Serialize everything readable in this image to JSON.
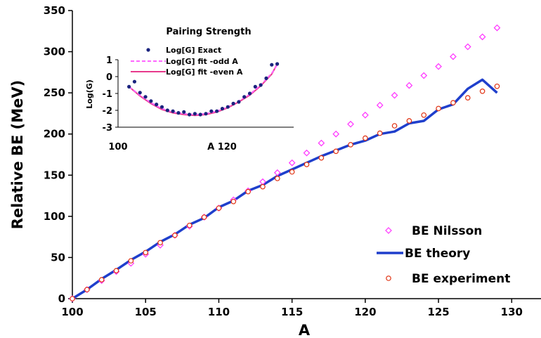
{
  "chart_data": [
    {
      "type": "line",
      "xlabel": "A",
      "ylabel": "Relative BE (MeV)",
      "xlim": [
        100,
        132
      ],
      "ylim": [
        0,
        350
      ],
      "x_ticks": [
        100,
        105,
        110,
        115,
        120,
        125,
        130
      ],
      "y_ticks": [
        0,
        50,
        100,
        150,
        200,
        250,
        300,
        350
      ],
      "legend_position": "bottom-right",
      "x": [
        100,
        101,
        102,
        103,
        104,
        105,
        106,
        107,
        108,
        109,
        110,
        111,
        112,
        113,
        114,
        115,
        116,
        117,
        118,
        119,
        120,
        121,
        122,
        123,
        124,
        125,
        126,
        127,
        128,
        129
      ],
      "series": [
        {
          "name": "BE Nilsson",
          "style": "diamond-markers",
          "color": "#ff33ff",
          "values": [
            0,
            11,
            22,
            33,
            43,
            54,
            65,
            77,
            88,
            99,
            110,
            120,
            131,
            142,
            153,
            165,
            177,
            189,
            200,
            212,
            223,
            235,
            247,
            259,
            271,
            282,
            294,
            306,
            318,
            329
          ]
        },
        {
          "name": "BE theory",
          "style": "line",
          "color": "#1f3fcc",
          "values": [
            0,
            11,
            24,
            35,
            47,
            57,
            69,
            78,
            90,
            98,
            111,
            119,
            131,
            138,
            149,
            157,
            165,
            173,
            180,
            187,
            192,
            200,
            203,
            213,
            216,
            230,
            236,
            255,
            266,
            250
          ]
        },
        {
          "name": "BE experiment",
          "style": "circle-markers",
          "color": "#e03010",
          "values": [
            0,
            11,
            23,
            34,
            46,
            56,
            68,
            77,
            89,
            99,
            110,
            118,
            130,
            136,
            146,
            154,
            163,
            171,
            179,
            187,
            195,
            201,
            210,
            216,
            223,
            231,
            238,
            244,
            252,
            258
          ]
        }
      ]
    },
    {
      "type": "line",
      "title": "Pairing Strength",
      "xlabel": "A",
      "ylabel": "Log(G)",
      "xlim": [
        100,
        132
      ],
      "ylim": [
        -3,
        1
      ],
      "x_ticks": [
        100,
        120
      ],
      "y_ticks": [
        -3,
        -2,
        -1,
        0,
        1
      ],
      "legend_position": "top",
      "series": [
        {
          "name": "Log[G] Exact",
          "style": "dot-markers",
          "color": "#1a237e",
          "x": [
            102,
            103,
            104,
            105,
            106,
            107,
            108,
            109,
            110,
            111,
            112,
            113,
            114,
            115,
            116,
            117,
            118,
            119,
            120,
            121,
            122,
            123,
            124,
            125,
            126,
            127,
            128,
            129
          ],
          "values": [
            -0.6,
            -0.3,
            -0.95,
            -1.2,
            -1.45,
            -1.65,
            -1.8,
            -2.0,
            -2.05,
            -2.15,
            -2.1,
            -2.25,
            -2.2,
            -2.25,
            -2.2,
            -2.05,
            -2.05,
            -1.9,
            -1.8,
            -1.6,
            -1.5,
            -1.2,
            -1.0,
            -0.6,
            -0.5,
            -0.1,
            0.7,
            0.75
          ]
        },
        {
          "name": "Log[G] fit -odd A",
          "style": "dashed-line",
          "color": "#ff66ff",
          "x": [
            102,
            104,
            106,
            108,
            110,
            112,
            114,
            116,
            118,
            120,
            122,
            124,
            126,
            128,
            129
          ],
          "values": [
            -0.6,
            -1.1,
            -1.55,
            -1.9,
            -2.1,
            -2.2,
            -2.25,
            -2.2,
            -2.05,
            -1.8,
            -1.45,
            -1.05,
            -0.5,
            0.2,
            0.7
          ]
        },
        {
          "name": "Log[G] fit -even A",
          "style": "line",
          "color": "#e83a8c",
          "x": [
            102,
            104,
            106,
            108,
            110,
            112,
            114,
            116,
            118,
            120,
            122,
            124,
            126,
            128,
            129
          ],
          "values": [
            -0.6,
            -1.15,
            -1.6,
            -1.95,
            -2.15,
            -2.25,
            -2.3,
            -2.25,
            -2.1,
            -1.85,
            -1.5,
            -1.1,
            -0.55,
            0.15,
            0.75
          ]
        }
      ],
      "inset_xaxis_label": "A 120"
    }
  ]
}
